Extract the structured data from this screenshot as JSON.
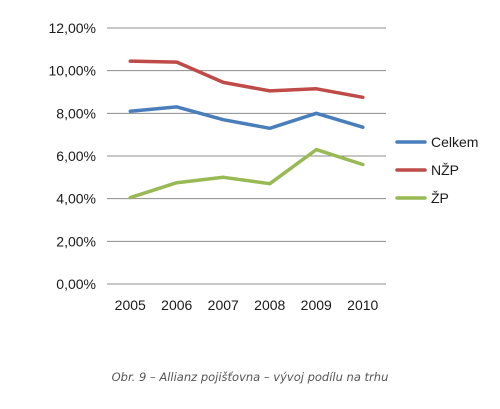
{
  "chart_data": {
    "type": "line",
    "categories": [
      "2005",
      "2006",
      "2007",
      "2008",
      "2009",
      "2010"
    ],
    "y_ticks": [
      "0,00%",
      "2,00%",
      "4,00%",
      "6,00%",
      "8,00%",
      "10,00%",
      "12,00%"
    ],
    "ylim": [
      0,
      12
    ],
    "grid": true,
    "legend_position": "right",
    "series": [
      {
        "name": "Celkem",
        "color": "#4a7ebb",
        "values": [
          8.1,
          8.3,
          7.7,
          7.3,
          8.0,
          7.35
        ]
      },
      {
        "name": "NŽP",
        "color": "#be4b48",
        "values": [
          10.45,
          10.4,
          9.45,
          9.05,
          9.15,
          8.75
        ]
      },
      {
        "name": "ŽP",
        "color": "#98b954",
        "values": [
          4.05,
          4.75,
          5.0,
          4.7,
          6.3,
          5.6
        ]
      }
    ]
  },
  "caption": "Obr. 9 – Allianz pojišťovna – vývoj podílu na trhu"
}
